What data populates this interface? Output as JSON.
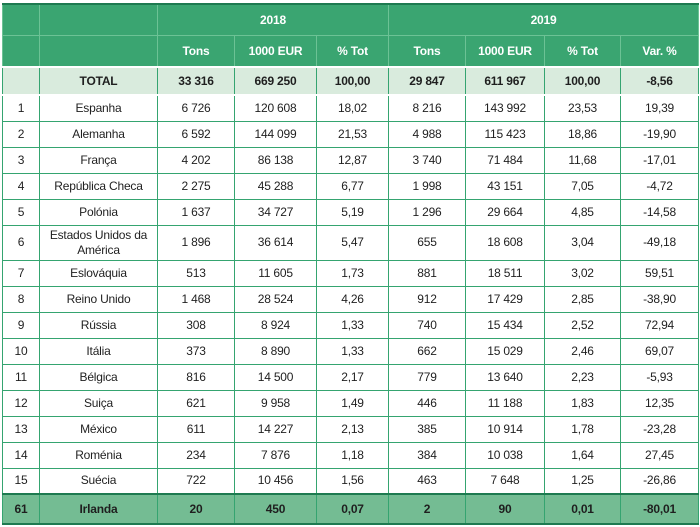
{
  "table": {
    "year_headers": [
      "2018",
      "2019"
    ],
    "column_headers": [
      "Tons",
      "1000 EUR",
      "% Tot",
      "Tons",
      "1000 EUR",
      "% Tot",
      "Var. %"
    ],
    "total_row": {
      "rank": "",
      "name": "TOTAL",
      "values": [
        "33 316",
        "669 250",
        "100,00",
        "29 847",
        "611 967",
        "100,00",
        "-8,56"
      ]
    },
    "rows": [
      {
        "rank": "1",
        "name": "Espanha",
        "values": [
          "6 726",
          "120 608",
          "18,02",
          "8 216",
          "143 992",
          "23,53",
          "19,39"
        ]
      },
      {
        "rank": "2",
        "name": "Alemanha",
        "values": [
          "6 592",
          "144 099",
          "21,53",
          "4 988",
          "115 423",
          "18,86",
          "-19,90"
        ]
      },
      {
        "rank": "3",
        "name": "França",
        "values": [
          "4 202",
          "86 138",
          "12,87",
          "3 740",
          "71 484",
          "11,68",
          "-17,01"
        ]
      },
      {
        "rank": "4",
        "name": "República Checa",
        "values": [
          "2 275",
          "45 288",
          "6,77",
          "1 998",
          "43 151",
          "7,05",
          "-4,72"
        ]
      },
      {
        "rank": "5",
        "name": "Polónia",
        "values": [
          "1 637",
          "34 727",
          "5,19",
          "1 296",
          "29 664",
          "4,85",
          "-14,58"
        ]
      },
      {
        "rank": "6",
        "name": "Estados Unidos da América",
        "values": [
          "1 896",
          "36 614",
          "5,47",
          "655",
          "18 608",
          "3,04",
          "-49,18"
        ]
      },
      {
        "rank": "7",
        "name": "Eslováquia",
        "values": [
          "513",
          "11 605",
          "1,73",
          "881",
          "18 511",
          "3,02",
          "59,51"
        ]
      },
      {
        "rank": "8",
        "name": "Reino Unido",
        "values": [
          "1 468",
          "28 524",
          "4,26",
          "912",
          "17 429",
          "2,85",
          "-38,90"
        ]
      },
      {
        "rank": "9",
        "name": "Rússia",
        "values": [
          "308",
          "8 924",
          "1,33",
          "740",
          "15 434",
          "2,52",
          "72,94"
        ]
      },
      {
        "rank": "10",
        "name": "Itália",
        "values": [
          "373",
          "8 890",
          "1,33",
          "662",
          "15 029",
          "2,46",
          "69,07"
        ]
      },
      {
        "rank": "11",
        "name": "Bélgica",
        "values": [
          "816",
          "14 500",
          "2,17",
          "779",
          "13 640",
          "2,23",
          "-5,93"
        ]
      },
      {
        "rank": "12",
        "name": "Suiça",
        "values": [
          "621",
          "9 958",
          "1,49",
          "446",
          "11 188",
          "1,83",
          "12,35"
        ]
      },
      {
        "rank": "13",
        "name": "México",
        "values": [
          "611",
          "14 227",
          "2,13",
          "385",
          "10 914",
          "1,78",
          "-23,28"
        ]
      },
      {
        "rank": "14",
        "name": "Roménia",
        "values": [
          "234",
          "7 876",
          "1,18",
          "384",
          "10 038",
          "1,64",
          "27,45"
        ]
      },
      {
        "rank": "15",
        "name": "Suécia",
        "values": [
          "722",
          "10 456",
          "1,56",
          "463",
          "7 648",
          "1,25",
          "-26,86"
        ]
      }
    ],
    "highlight_row": {
      "rank": "61",
      "name": "Irlanda",
      "values": [
        "20",
        "450",
        "0,07",
        "2",
        "90",
        "0,01",
        "-80,01"
      ]
    }
  },
  "colors": {
    "header_green": "#3AA571",
    "header_grid": "#6CC295",
    "grid_green": "#35A470",
    "dark_border_green": "#1E7A50",
    "light_row_green": "#D9EBDD",
    "highlight_row_green": "#74BC93",
    "text_dark": "#1F1F1F",
    "header_text": "#FFFFFF"
  }
}
